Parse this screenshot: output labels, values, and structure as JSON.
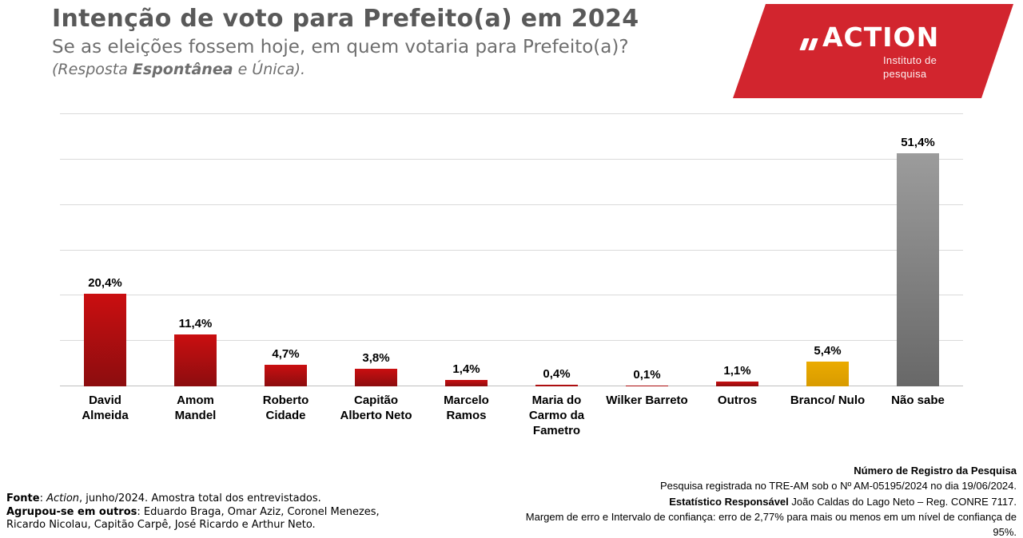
{
  "header": {
    "title": "Intenção de voto para Prefeito(a) em 2024",
    "subtitle": "Se as eleições fossem hoje, em quem votaria para Prefeito(a)?",
    "note_prefix": "(Resposta ",
    "note_bold": "Espontânea",
    "note_suffix": " e Única)."
  },
  "brand": {
    "name": "ACTION",
    "tagline": "Instituto de\npesquisa",
    "bg_color": "#d2252e",
    "icon": "double-slash-icon"
  },
  "chart_data": {
    "type": "bar",
    "title": "Intenção de voto para Prefeito(a) em 2024",
    "unit": "%",
    "categories": [
      "David\nAlmeida",
      "Amom\nMandel",
      "Roberto\nCidade",
      "Capitão\nAlberto Neto",
      "Marcelo\nRamos",
      "Maria do\nCarmo da\nFametro",
      "Wilker Barreto",
      "Outros",
      "Branco/ Nulo",
      "Não sabe"
    ],
    "values": [
      20.4,
      11.4,
      4.7,
      3.8,
      1.4,
      0.4,
      0.1,
      1.1,
      5.4,
      51.4
    ],
    "value_labels": [
      "20,4%",
      "11,4%",
      "4,7%",
      "3,8%",
      "1,4%",
      "0,4%",
      "0,1%",
      "1,1%",
      "5,4%",
      "51,4%"
    ],
    "colors": [
      "red",
      "red",
      "red",
      "red",
      "red",
      "red",
      "red",
      "red",
      "yellow",
      "gray"
    ],
    "palette": {
      "red": "#a60d0f",
      "yellow": "#e2a300",
      "gray": "#808080"
    },
    "ylim": [
      0,
      60
    ],
    "grid_step": 10,
    "grid": true,
    "legend": false,
    "xlabel": "",
    "ylabel": ""
  },
  "footer_left": {
    "line1_bold": "Fonte",
    "line1_sep": ": ",
    "line1_italic": "Action",
    "line1_rest": ", junho/2024. Amostra total dos entrevistados.",
    "line2_bold": "Agrupou-se em outros",
    "line2_rest": ": Eduardo Braga, Omar Aziz, Coronel Menezes,",
    "line3": "Ricardo Nicolau, Capitão Carpê, José Ricardo e Arthur Neto."
  },
  "footer_right": {
    "line1": "Número de Registro da Pesquisa",
    "line2": "Pesquisa registrada no TRE-AM sob o Nº AM-05195/2024 no dia 19/06/2024.",
    "line3_bold": "Estatístico Responsável",
    "line3_rest": " João Caldas do Lago Neto – Reg. CONRE 7117.",
    "line4": "Margem de erro e Intervalo de confiança: erro de 2,77% para mais ou menos em um nível de confiança de 95%."
  }
}
